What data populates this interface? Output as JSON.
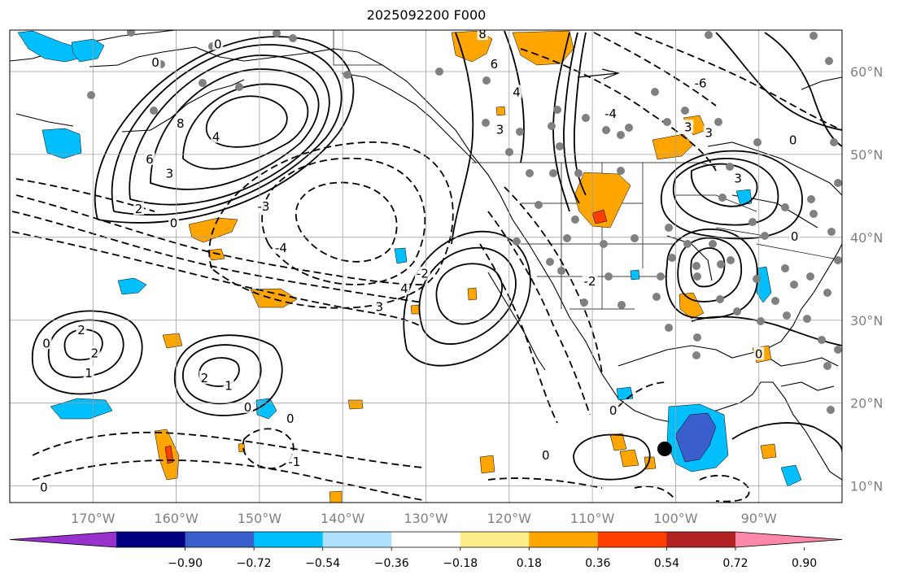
{
  "title": "2025092200 F000",
  "map": {
    "lon_range": [
      -180,
      -80
    ],
    "lat_range": [
      8,
      65
    ],
    "lat_ticks": [
      {
        "value": 60,
        "label": "60°N"
      },
      {
        "value": 50,
        "label": "50°N"
      },
      {
        "value": 40,
        "label": "40°N"
      },
      {
        "value": 30,
        "label": "30°N"
      },
      {
        "value": 20,
        "label": "20°N"
      },
      {
        "value": 10,
        "label": "10°N"
      }
    ],
    "lon_ticks": [
      {
        "value": -170,
        "label": "170°W"
      },
      {
        "value": -160,
        "label": "160°W"
      },
      {
        "value": -150,
        "label": "150°W"
      },
      {
        "value": -140,
        "label": "140°W"
      },
      {
        "value": -130,
        "label": "130°W"
      },
      {
        "value": -120,
        "label": "120°W"
      },
      {
        "value": -110,
        "label": "110°W"
      },
      {
        "value": -100,
        "label": "100°W"
      },
      {
        "value": -90,
        "label": "90°W"
      }
    ],
    "gridline_color": "#a0a0a0",
    "contour_labels": [
      {
        "text": "8",
        "lon": -159.5,
        "lat": 53.6
      },
      {
        "text": "6",
        "lon": -163.2,
        "lat": 49.3
      },
      {
        "text": "4",
        "lon": -155.2,
        "lat": 52.0
      },
      {
        "text": "3",
        "lon": -160.8,
        "lat": 47.6
      },
      {
        "text": "2",
        "lon": -164.5,
        "lat": 43.3
      },
      {
        "text": "0",
        "lon": -160.3,
        "lat": 41.6
      },
      {
        "text": "0",
        "lon": -155.0,
        "lat": 63.2
      },
      {
        "text": "0",
        "lon": -162.5,
        "lat": 61.0
      },
      {
        "text": "-3",
        "lon": -149.5,
        "lat": 43.6
      },
      {
        "text": "-4",
        "lon": -147.4,
        "lat": 38.6
      },
      {
        "text": "-2",
        "lon": -130.4,
        "lat": 35.5
      },
      {
        "text": "3",
        "lon": -135.6,
        "lat": 31.5
      },
      {
        "text": "4",
        "lon": -132.6,
        "lat": 33.7
      },
      {
        "text": "2",
        "lon": -171.4,
        "lat": 28.7
      },
      {
        "text": "2",
        "lon": -169.8,
        "lat": 25.9
      },
      {
        "text": "1",
        "lon": -170.5,
        "lat": 23.5
      },
      {
        "text": "0",
        "lon": -175.6,
        "lat": 27.1
      },
      {
        "text": "2",
        "lon": -156.6,
        "lat": 22.9
      },
      {
        "text": "1",
        "lon": -153.7,
        "lat": 22.0
      },
      {
        "text": "0",
        "lon": -151.4,
        "lat": 19.4
      },
      {
        "text": "0",
        "lon": -146.3,
        "lat": 18.0
      },
      {
        "text": "-1",
        "lon": -145.8,
        "lat": 12.8
      },
      {
        "text": "0",
        "lon": -175.9,
        "lat": 9.7
      },
      {
        "text": "0",
        "lon": -90.0,
        "lat": 25.8
      },
      {
        "text": "8",
        "lon": -123.2,
        "lat": 64.4
      },
      {
        "text": "6",
        "lon": -121.8,
        "lat": 60.8
      },
      {
        "text": "4",
        "lon": -119.1,
        "lat": 57.4
      },
      {
        "text": "3",
        "lon": -121.1,
        "lat": 52.9
      },
      {
        "text": "-4",
        "lon": -107.8,
        "lat": 54.8
      },
      {
        "text": "-6",
        "lon": -97.0,
        "lat": 58.5
      },
      {
        "text": "3",
        "lon": -98.5,
        "lat": 53.2
      },
      {
        "text": "3",
        "lon": -96.0,
        "lat": 52.5
      },
      {
        "text": "0",
        "lon": -85.9,
        "lat": 51.6
      },
      {
        "text": "3",
        "lon": -92.5,
        "lat": 47.0
      },
      {
        "text": "0",
        "lon": -85.7,
        "lat": 40.0
      },
      {
        "text": "-2",
        "lon": -110.3,
        "lat": 34.6
      },
      {
        "text": "0",
        "lon": -107.5,
        "lat": 19.0
      },
      {
        "text": "0",
        "lon": -115.6,
        "lat": 13.6
      }
    ],
    "colorbar": {
      "boundaries": [
        -0.9,
        -0.72,
        -0.54,
        -0.36,
        -0.18,
        0.18,
        0.36,
        0.54,
        0.72,
        0.9
      ],
      "labels": [
        "−0.90",
        "−0.72",
        "−0.54",
        "−0.36",
        "−0.18",
        "0.18",
        "0.36",
        "0.54",
        "0.72",
        "0.90"
      ],
      "colors": [
        "#9932cc",
        "#000080",
        "#3a5fcd",
        "#00bfff",
        "#b0e2ff",
        "#ffffff",
        "#fdee89",
        "#ffa500",
        "#ff3e00",
        "#b22222",
        "#ff88aa"
      ]
    }
  }
}
